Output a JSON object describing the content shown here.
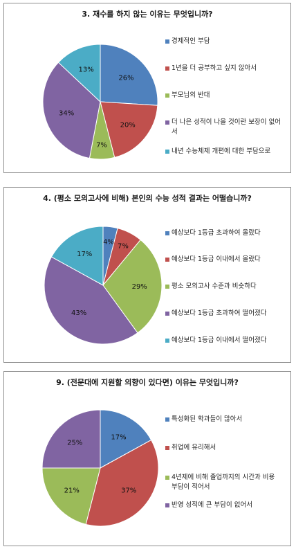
{
  "colors": {
    "blue": "#4f81bd",
    "red": "#c0504d",
    "green": "#9bbb59",
    "purple": "#8064a2",
    "cyan": "#4bacc6"
  },
  "chart_data": [
    {
      "type": "pie",
      "title": "3. 재수를 하지 않는 이유는 무엇입니까?",
      "categories": [
        "경제적인 부담",
        "1년을 더 공부하고 싶지 않아서",
        "부모님의 반대",
        "더 나은 성적이 나올 것이란 보장이 없어서",
        "내년 수능체제 개편에 대한 부담으로"
      ],
      "values": [
        26,
        20,
        7,
        34,
        13
      ],
      "data_labels": [
        "26%",
        "20%",
        "7%",
        "34%",
        "13%"
      ],
      "legend_position": "right"
    },
    {
      "type": "pie",
      "title": "4. (평소 모의고사에 비해) 본인의 수능 성적 결과는 어떨습니까?",
      "categories": [
        "예상보다 1등급 초과하여 올랐다",
        "예상보다 1등급 이내에서 올랐다",
        "평소 모의고사 수준과 비슷하다",
        "예상보다 1등급 초과하여 떨어졌다",
        "예상보다 1등급 이내에서 떨어졌다"
      ],
      "values": [
        4,
        7,
        29,
        43,
        17
      ],
      "data_labels": [
        "4%",
        "7%",
        "29%",
        "43%",
        "17%"
      ],
      "legend_position": "right"
    },
    {
      "type": "pie",
      "title": "9. (전문대에 지원할 의향이 있다면) 이유는 무엇입니까?",
      "categories": [
        "특성화된 학과들이 많아서",
        "취업에 유리해서",
        "4년제에 비해 졸업까지의 시간과 비용 부담이 적어서",
        "반영 성적에 큰 부담이 없어서"
      ],
      "values": [
        17,
        37,
        21,
        25
      ],
      "data_labels": [
        "17%",
        "37%",
        "21%",
        "25%"
      ],
      "legend_position": "right"
    }
  ]
}
